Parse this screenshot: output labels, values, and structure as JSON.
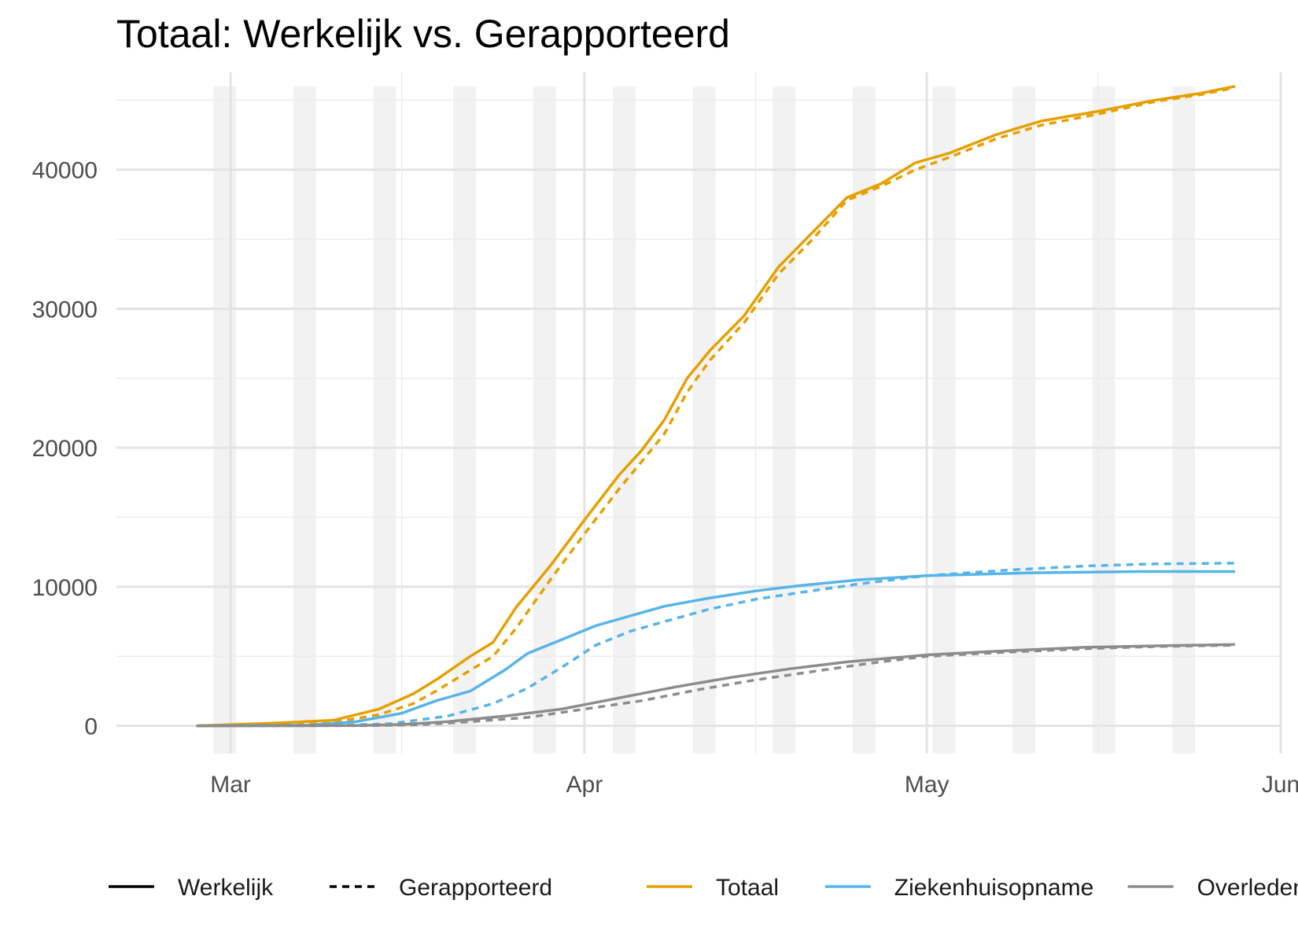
{
  "chart_data": {
    "type": "line",
    "title": "Totaal: Werkelijk vs. Gerapporteerd",
    "xlabel": "",
    "ylabel": "",
    "x_axis": {
      "type": "date",
      "range": [
        "2020-02-20",
        "2020-06-01"
      ],
      "ticks": [
        {
          "date": "2020-03-01",
          "label": "Mar"
        },
        {
          "date": "2020-04-01",
          "label": "Apr"
        },
        {
          "date": "2020-05-01",
          "label": "May"
        },
        {
          "date": "2020-06-01",
          "label": "Jun"
        }
      ]
    },
    "y_axis": {
      "range": [
        -2000,
        47000
      ],
      "ticks": [
        0,
        10000,
        20000,
        30000,
        40000
      ]
    },
    "grid": true,
    "weekend_bands": [
      "2020-02-29",
      "2020-03-07",
      "2020-03-14",
      "2020-03-21",
      "2020-03-28",
      "2020-04-04",
      "2020-04-11",
      "2020-04-18",
      "2020-04-25",
      "2020-05-02",
      "2020-05-09",
      "2020-05-16",
      "2020-05-23"
    ],
    "legend": {
      "placement": "bottom",
      "linetypes": [
        {
          "label": "Werkelijk",
          "dash": "solid"
        },
        {
          "label": "Gerapporteerd",
          "dash": "dashed"
        }
      ],
      "colors": [
        {
          "label": "Totaal",
          "color": "#E69F00"
        },
        {
          "label": "Ziekenhuisopname",
          "color": "#56B4E9"
        },
        {
          "label": "Overleden",
          "color": "#8C8C8C"
        }
      ]
    },
    "series": [
      {
        "name": "Totaal",
        "linetype": "Werkelijk",
        "color": "#E69F00",
        "points": [
          [
            "2020-02-27",
            0
          ],
          [
            "2020-03-05",
            200
          ],
          [
            "2020-03-10",
            400
          ],
          [
            "2020-03-14",
            1200
          ],
          [
            "2020-03-17",
            2300
          ],
          [
            "2020-03-19",
            3300
          ],
          [
            "2020-03-22",
            5000
          ],
          [
            "2020-03-24",
            6000
          ],
          [
            "2020-03-26",
            8500
          ],
          [
            "2020-03-29",
            11500
          ],
          [
            "2020-04-01",
            14800
          ],
          [
            "2020-04-04",
            18000
          ],
          [
            "2020-04-06",
            19800
          ],
          [
            "2020-04-08",
            22000
          ],
          [
            "2020-04-10",
            25000
          ],
          [
            "2020-04-12",
            27000
          ],
          [
            "2020-04-15",
            29500
          ],
          [
            "2020-04-18",
            33000
          ],
          [
            "2020-04-21",
            35500
          ],
          [
            "2020-04-24",
            38000
          ],
          [
            "2020-04-27",
            39000
          ],
          [
            "2020-04-30",
            40500
          ],
          [
            "2020-05-03",
            41200
          ],
          [
            "2020-05-07",
            42500
          ],
          [
            "2020-05-11",
            43500
          ],
          [
            "2020-05-16",
            44200
          ],
          [
            "2020-05-21",
            45000
          ],
          [
            "2020-05-25",
            45500
          ],
          [
            "2020-05-28",
            46000
          ]
        ]
      },
      {
        "name": "Totaal",
        "linetype": "Gerapporteerd",
        "color": "#E69F00",
        "points": [
          [
            "2020-02-27",
            0
          ],
          [
            "2020-03-05",
            100
          ],
          [
            "2020-03-10",
            250
          ],
          [
            "2020-03-14",
            800
          ],
          [
            "2020-03-17",
            1600
          ],
          [
            "2020-03-19",
            2500
          ],
          [
            "2020-03-22",
            4000
          ],
          [
            "2020-03-24",
            5000
          ],
          [
            "2020-03-26",
            7000
          ],
          [
            "2020-03-29",
            10500
          ],
          [
            "2020-04-01",
            13800
          ],
          [
            "2020-04-04",
            17000
          ],
          [
            "2020-04-06",
            19000
          ],
          [
            "2020-04-08",
            21000
          ],
          [
            "2020-04-10",
            24000
          ],
          [
            "2020-04-12",
            26300
          ],
          [
            "2020-04-15",
            29000
          ],
          [
            "2020-04-18",
            32500
          ],
          [
            "2020-04-21",
            35000
          ],
          [
            "2020-04-24",
            37800
          ],
          [
            "2020-04-27",
            38800
          ],
          [
            "2020-04-30",
            40000
          ],
          [
            "2020-05-03",
            40900
          ],
          [
            "2020-05-07",
            42200
          ],
          [
            "2020-05-11",
            43200
          ],
          [
            "2020-05-16",
            44000
          ],
          [
            "2020-05-21",
            44900
          ],
          [
            "2020-05-25",
            45400
          ],
          [
            "2020-05-28",
            45900
          ]
        ]
      },
      {
        "name": "Ziekenhuisopname",
        "linetype": "Werkelijk",
        "color": "#56B4E9",
        "points": [
          [
            "2020-02-27",
            0
          ],
          [
            "2020-03-08",
            50
          ],
          [
            "2020-03-12",
            300
          ],
          [
            "2020-03-16",
            900
          ],
          [
            "2020-03-19",
            1800
          ],
          [
            "2020-03-22",
            2500
          ],
          [
            "2020-03-25",
            4000
          ],
          [
            "2020-03-27",
            5200
          ],
          [
            "2020-03-30",
            6200
          ],
          [
            "2020-04-02",
            7200
          ],
          [
            "2020-04-05",
            7900
          ],
          [
            "2020-04-08",
            8600
          ],
          [
            "2020-04-12",
            9200
          ],
          [
            "2020-04-16",
            9700
          ],
          [
            "2020-04-20",
            10100
          ],
          [
            "2020-04-25",
            10500
          ],
          [
            "2020-05-01",
            10800
          ],
          [
            "2020-05-10",
            11000
          ],
          [
            "2020-05-20",
            11100
          ],
          [
            "2020-05-28",
            11100
          ]
        ]
      },
      {
        "name": "Ziekenhuisopname",
        "linetype": "Gerapporteerd",
        "color": "#56B4E9",
        "points": [
          [
            "2020-02-27",
            0
          ],
          [
            "2020-03-10",
            30
          ],
          [
            "2020-03-15",
            150
          ],
          [
            "2020-03-20",
            700
          ],
          [
            "2020-03-24",
            1600
          ],
          [
            "2020-03-27",
            2700
          ],
          [
            "2020-03-30",
            4200
          ],
          [
            "2020-04-02",
            5800
          ],
          [
            "2020-04-05",
            6800
          ],
          [
            "2020-04-08",
            7500
          ],
          [
            "2020-04-12",
            8400
          ],
          [
            "2020-04-16",
            9100
          ],
          [
            "2020-04-20",
            9600
          ],
          [
            "2020-04-25",
            10200
          ],
          [
            "2020-05-01",
            10800
          ],
          [
            "2020-05-08",
            11200
          ],
          [
            "2020-05-15",
            11500
          ],
          [
            "2020-05-21",
            11650
          ],
          [
            "2020-05-28",
            11700
          ]
        ]
      },
      {
        "name": "Overleden",
        "linetype": "Werkelijk",
        "color": "#8C8C8C",
        "points": [
          [
            "2020-02-27",
            0
          ],
          [
            "2020-03-12",
            20
          ],
          [
            "2020-03-16",
            100
          ],
          [
            "2020-03-20",
            300
          ],
          [
            "2020-03-25",
            700
          ],
          [
            "2020-03-30",
            1200
          ],
          [
            "2020-04-04",
            2000
          ],
          [
            "2020-04-09",
            2800
          ],
          [
            "2020-04-14",
            3500
          ],
          [
            "2020-04-19",
            4100
          ],
          [
            "2020-04-24",
            4600
          ],
          [
            "2020-05-01",
            5100
          ],
          [
            "2020-05-08",
            5400
          ],
          [
            "2020-05-15",
            5650
          ],
          [
            "2020-05-21",
            5750
          ],
          [
            "2020-05-28",
            5850
          ]
        ]
      },
      {
        "name": "Overleden",
        "linetype": "Gerapporteerd",
        "color": "#8C8C8C",
        "points": [
          [
            "2020-02-27",
            0
          ],
          [
            "2020-03-14",
            20
          ],
          [
            "2020-03-18",
            100
          ],
          [
            "2020-03-22",
            300
          ],
          [
            "2020-03-27",
            600
          ],
          [
            "2020-04-01",
            1200
          ],
          [
            "2020-04-06",
            1800
          ],
          [
            "2020-04-11",
            2600
          ],
          [
            "2020-04-16",
            3300
          ],
          [
            "2020-04-21",
            3900
          ],
          [
            "2020-04-26",
            4500
          ],
          [
            "2020-05-01",
            5000
          ],
          [
            "2020-05-08",
            5300
          ],
          [
            "2020-05-15",
            5550
          ],
          [
            "2020-05-21",
            5700
          ],
          [
            "2020-05-28",
            5800
          ]
        ]
      }
    ]
  }
}
